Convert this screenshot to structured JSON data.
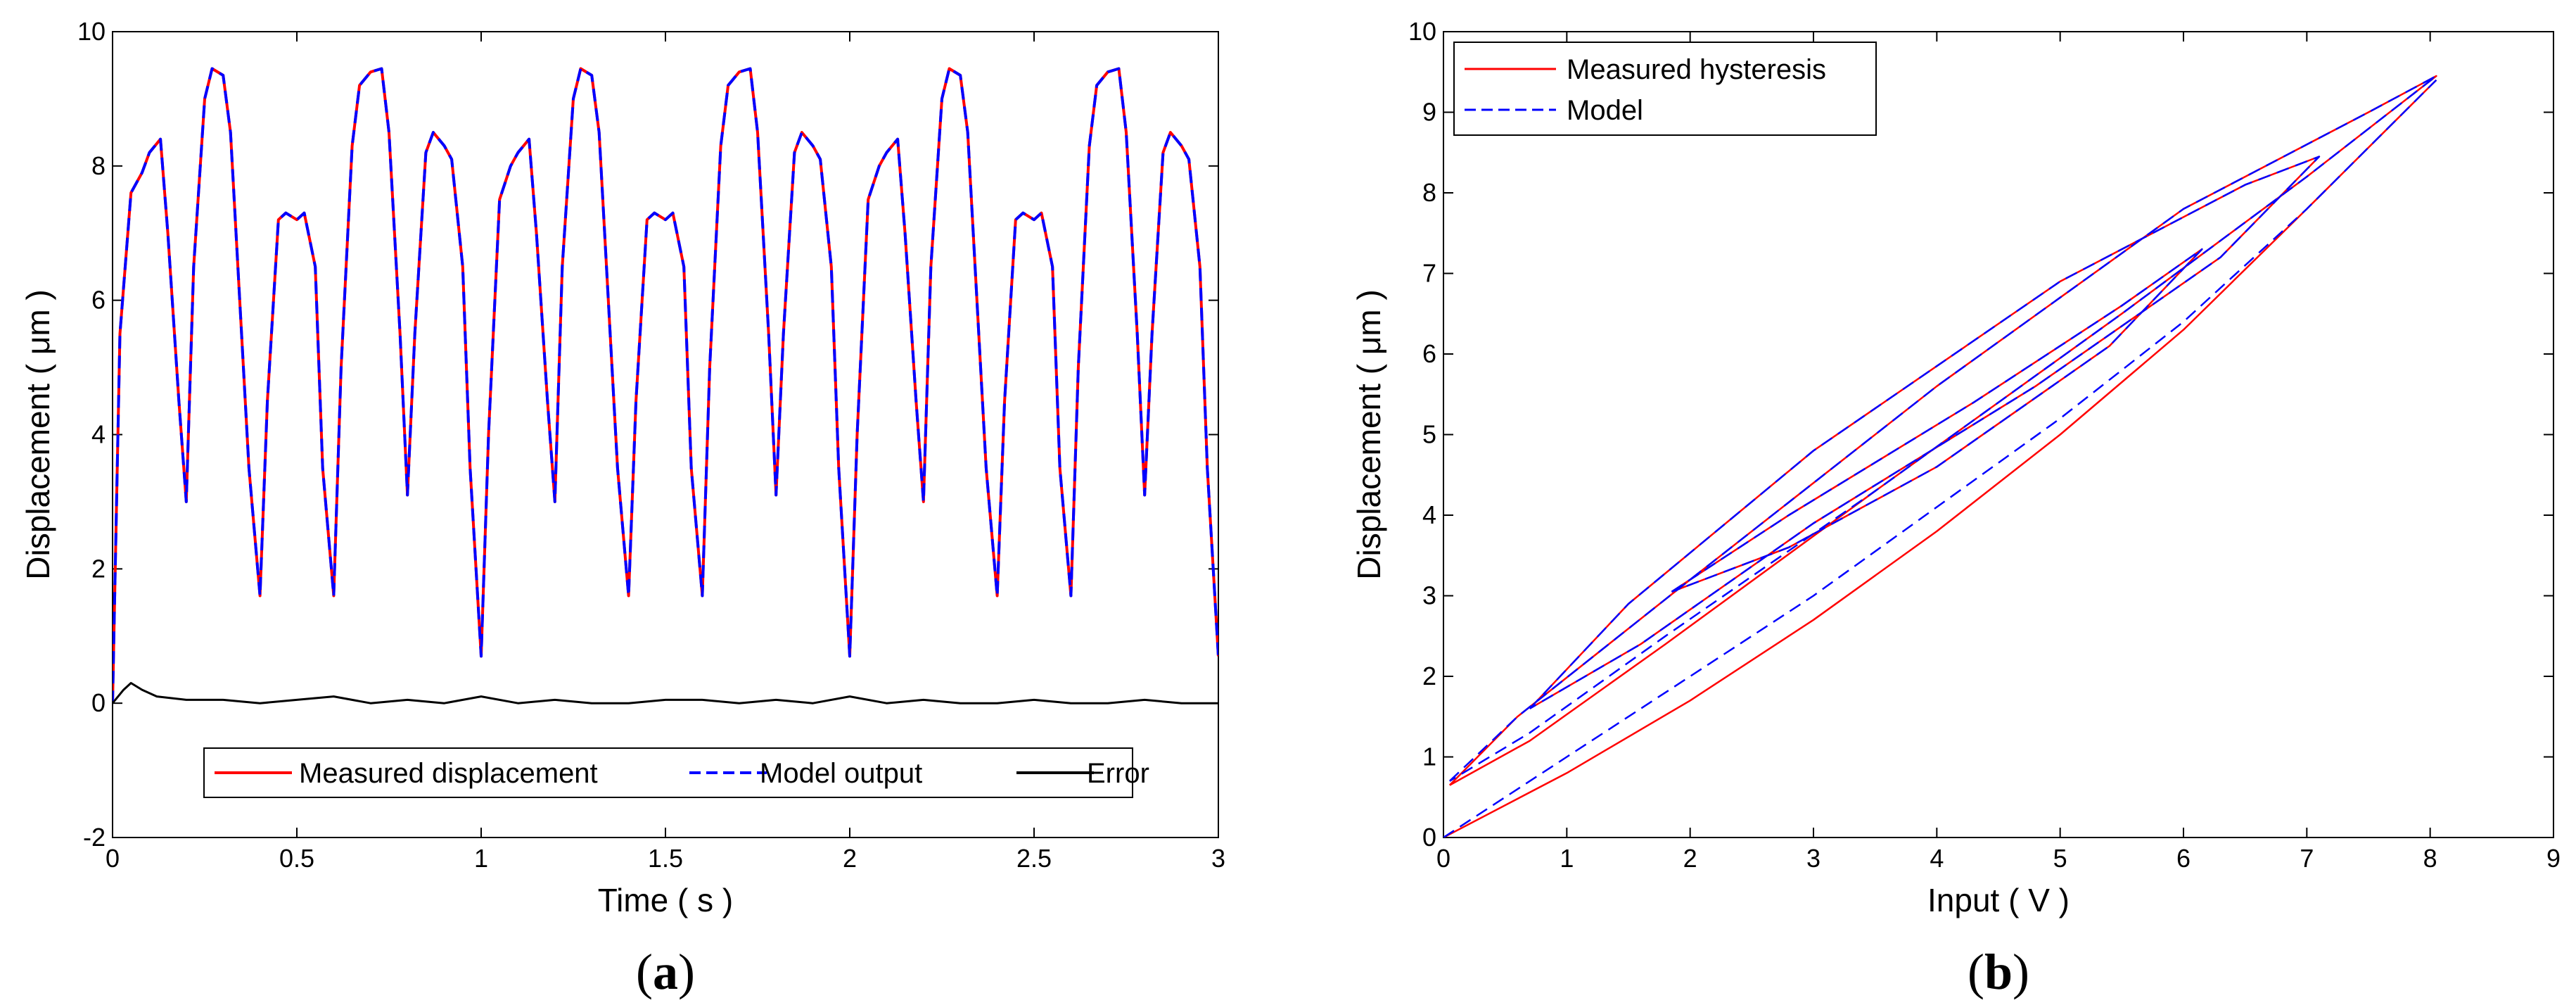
{
  "chart_data": [
    {
      "type": "line",
      "panel": "a",
      "caption_letter": "a",
      "title": "",
      "xlabel": "Time ( s )",
      "ylabel": "Displacement ( μm )",
      "xlim": [
        0,
        3
      ],
      "ylim": [
        -2,
        10
      ],
      "xticks": [
        0,
        0.5,
        1,
        1.5,
        2,
        2.5,
        3
      ],
      "xtick_labels": [
        "0",
        "0.5",
        "1",
        "1.5",
        "2",
        "2.5",
        "3"
      ],
      "yticks": [
        -2,
        0,
        2,
        4,
        6,
        8,
        10
      ],
      "ytick_labels": [
        "-2",
        "0",
        "2",
        "4",
        "6",
        "8",
        "10"
      ],
      "legend_position": "bottom",
      "series": [
        {
          "name": "Measured displacement",
          "color": "#ff0000",
          "style": "solid",
          "x": [
            0,
            0.02,
            0.05,
            0.08,
            0.1,
            0.13,
            0.15,
            0.18,
            0.2,
            0.22,
            0.25,
            0.27,
            0.3,
            0.32,
            0.35,
            0.37,
            0.4,
            0.42,
            0.45,
            0.47,
            0.5,
            0.52,
            0.55,
            0.57,
            0.6,
            0.62,
            0.65,
            0.67,
            0.7,
            0.73,
            0.75,
            0.78,
            0.8,
            0.82,
            0.85,
            0.87,
            0.9,
            0.92,
            0.95,
            0.97,
            1.0,
            1.02,
            1.05,
            1.08,
            1.1,
            1.13,
            1.15,
            1.18,
            1.2,
            1.22,
            1.25,
            1.27,
            1.3,
            1.32,
            1.35,
            1.37,
            1.4,
            1.42,
            1.45,
            1.47,
            1.5,
            1.52,
            1.55,
            1.57,
            1.6,
            1.62,
            1.65,
            1.67,
            1.7,
            1.73,
            1.75,
            1.78,
            1.8,
            1.82,
            1.85,
            1.87,
            1.9,
            1.92,
            1.95,
            1.97,
            2.0,
            2.02,
            2.05,
            2.08,
            2.1,
            2.13,
            2.15,
            2.18,
            2.2,
            2.22,
            2.25,
            2.27,
            2.3,
            2.32,
            2.35,
            2.37,
            2.4,
            2.42,
            2.45,
            2.47,
            2.5,
            2.52,
            2.55,
            2.57,
            2.6,
            2.62,
            2.65,
            2.67,
            2.7,
            2.73,
            2.75,
            2.78,
            2.8,
            2.82,
            2.85,
            2.87,
            2.9,
            2.92,
            2.95,
            2.97,
            3.0
          ],
          "y": [
            0,
            5.5,
            7.6,
            7.9,
            8.2,
            8.4,
            7.0,
            4.5,
            3.0,
            6.5,
            9.0,
            9.45,
            9.35,
            8.5,
            5.5,
            3.5,
            1.6,
            4.5,
            7.2,
            7.3,
            7.2,
            7.3,
            6.5,
            3.5,
            1.6,
            5.0,
            8.3,
            9.2,
            9.4,
            9.45,
            8.5,
            5.5,
            3.1,
            5.5,
            8.2,
            8.5,
            8.3,
            8.1,
            6.5,
            3.5,
            0.7,
            4.0,
            7.5,
            8.0,
            8.2,
            8.4,
            7.0,
            4.5,
            3.0,
            6.5,
            9.0,
            9.45,
            9.35,
            8.5,
            5.5,
            3.5,
            1.6,
            4.5,
            7.2,
            7.3,
            7.2,
            7.3,
            6.5,
            3.5,
            1.6,
            5.0,
            8.3,
            9.2,
            9.4,
            9.45,
            8.5,
            5.5,
            3.1,
            5.5,
            8.2,
            8.5,
            8.3,
            8.1,
            6.5,
            3.5,
            0.7,
            4.0,
            7.5,
            8.0,
            8.2,
            8.4,
            7.0,
            4.5,
            3.0,
            6.5,
            9.0,
            9.45,
            9.35,
            8.5,
            5.5,
            3.5,
            1.6,
            4.5,
            7.2,
            7.3,
            7.2,
            7.3,
            6.5,
            3.5,
            1.6,
            5.0,
            8.3,
            9.2,
            9.4,
            9.45,
            8.5,
            5.5,
            3.1,
            5.5,
            8.2,
            8.5,
            8.3,
            8.1,
            6.5,
            3.5,
            0.7
          ]
        },
        {
          "name": "Model output",
          "color": "#0000ff",
          "style": "dashed",
          "x": [
            0,
            0.02,
            0.05,
            0.08,
            0.1,
            0.13,
            0.15,
            0.18,
            0.2,
            0.22,
            0.25,
            0.27,
            0.3,
            0.32,
            0.35,
            0.37,
            0.4,
            0.42,
            0.45,
            0.47,
            0.5,
            0.52,
            0.55,
            0.57,
            0.6,
            0.62,
            0.65,
            0.67,
            0.7,
            0.73,
            0.75,
            0.78,
            0.8,
            0.82,
            0.85,
            0.87,
            0.9,
            0.92,
            0.95,
            0.97,
            1.0,
            1.02,
            1.05,
            1.08,
            1.1,
            1.13,
            1.15,
            1.18,
            1.2,
            1.22,
            1.25,
            1.27,
            1.3,
            1.32,
            1.35,
            1.37,
            1.4,
            1.42,
            1.45,
            1.47,
            1.5,
            1.52,
            1.55,
            1.57,
            1.6,
            1.62,
            1.65,
            1.67,
            1.7,
            1.73,
            1.75,
            1.78,
            1.8,
            1.82,
            1.85,
            1.87,
            1.9,
            1.92,
            1.95,
            1.97,
            2.0,
            2.02,
            2.05,
            2.08,
            2.1,
            2.13,
            2.15,
            2.18,
            2.2,
            2.22,
            2.25,
            2.27,
            2.3,
            2.32,
            2.35,
            2.37,
            2.4,
            2.42,
            2.45,
            2.47,
            2.5,
            2.52,
            2.55,
            2.57,
            2.6,
            2.62,
            2.65,
            2.67,
            2.7,
            2.73,
            2.75,
            2.78,
            2.8,
            2.82,
            2.85,
            2.87,
            2.9,
            2.92,
            2.95,
            2.97,
            3.0
          ],
          "y": [
            0,
            5.5,
            7.6,
            7.9,
            8.2,
            8.4,
            7.0,
            4.5,
            3.0,
            6.5,
            9.0,
            9.45,
            9.35,
            8.5,
            5.5,
            3.5,
            1.6,
            4.5,
            7.2,
            7.3,
            7.2,
            7.3,
            6.5,
            3.5,
            1.6,
            5.0,
            8.3,
            9.2,
            9.4,
            9.45,
            8.5,
            5.5,
            3.1,
            5.5,
            8.2,
            8.5,
            8.3,
            8.1,
            6.5,
            3.5,
            0.7,
            4.0,
            7.5,
            8.0,
            8.2,
            8.4,
            7.0,
            4.5,
            3.0,
            6.5,
            9.0,
            9.45,
            9.35,
            8.5,
            5.5,
            3.5,
            1.6,
            4.5,
            7.2,
            7.3,
            7.2,
            7.3,
            6.5,
            3.5,
            1.6,
            5.0,
            8.3,
            9.2,
            9.4,
            9.45,
            8.5,
            5.5,
            3.1,
            5.5,
            8.2,
            8.5,
            8.3,
            8.1,
            6.5,
            3.5,
            0.7,
            4.0,
            7.5,
            8.0,
            8.2,
            8.4,
            7.0,
            4.5,
            3.0,
            6.5,
            9.0,
            9.45,
            9.35,
            8.5,
            5.5,
            3.5,
            1.6,
            4.5,
            7.2,
            7.3,
            7.2,
            7.3,
            6.5,
            3.5,
            1.6,
            5.0,
            8.3,
            9.2,
            9.4,
            9.45,
            8.5,
            5.5,
            3.1,
            5.5,
            8.2,
            8.5,
            8.3,
            8.1,
            6.5,
            3.5,
            0.7
          ]
        },
        {
          "name": "Error",
          "color": "#000000",
          "style": "solid",
          "x": [
            0,
            0.03,
            0.05,
            0.08,
            0.12,
            0.2,
            0.3,
            0.4,
            0.5,
            0.6,
            0.7,
            0.8,
            0.9,
            1.0,
            1.1,
            1.2,
            1.3,
            1.4,
            1.5,
            1.6,
            1.7,
            1.8,
            1.9,
            2.0,
            2.1,
            2.2,
            2.3,
            2.4,
            2.5,
            2.6,
            2.7,
            2.8,
            2.9,
            3.0
          ],
          "y": [
            0,
            0.2,
            0.3,
            0.2,
            0.1,
            0.05,
            0.05,
            0.0,
            0.05,
            0.1,
            0.0,
            0.05,
            0.0,
            0.1,
            0.0,
            0.05,
            0.0,
            0.0,
            0.05,
            0.05,
            0.0,
            0.05,
            0.0,
            0.1,
            0.0,
            0.05,
            0.0,
            0.0,
            0.05,
            0.0,
            0.0,
            0.05,
            0.0,
            0.0
          ]
        }
      ]
    },
    {
      "type": "line",
      "panel": "b",
      "caption_letter": "b",
      "title": "",
      "xlabel": "Input ( V )",
      "ylabel": "Displacement ( μm )",
      "xlim": [
        0,
        9
      ],
      "ylim": [
        0,
        10
      ],
      "xticks": [
        0,
        1,
        2,
        3,
        4,
        5,
        6,
        7,
        8,
        9
      ],
      "xtick_labels": [
        "0",
        "1",
        "2",
        "3",
        "4",
        "5",
        "6",
        "7",
        "8",
        "9"
      ],
      "yticks": [
        0,
        1,
        2,
        3,
        4,
        5,
        6,
        7,
        8,
        9,
        10
      ],
      "ytick_labels": [
        "0",
        "1",
        "2",
        "3",
        "4",
        "5",
        "6",
        "7",
        "8",
        "9",
        "10"
      ],
      "legend_position": "top-left",
      "series": [
        {
          "name": "Measured hysteresis",
          "color": "#ff0000",
          "style": "solid",
          "loops": [
            {
              "x": [
                0.05,
                0.6,
                2.0,
                4.0,
                6.0,
                7.5,
                8.05,
                7.0,
                5.5,
                3.5,
                1.8,
                0.7,
                0.05
              ],
              "y": [
                0.65,
                1.5,
                3.2,
                5.6,
                7.8,
                9.0,
                9.45,
                8.2,
                6.5,
                4.3,
                2.4,
                1.2,
                0.65
              ]
            },
            {
              "x": [
                0.7,
                1.5,
                3.0,
                5.0,
                6.5,
                7.1,
                6.3,
                4.8,
                3.0,
                1.6,
                0.7
              ],
              "y": [
                1.6,
                2.9,
                4.8,
                6.9,
                8.1,
                8.45,
                7.2,
                5.6,
                3.9,
                2.4,
                1.6
              ]
            },
            {
              "x": [
                1.85,
                2.8,
                4.3,
                5.5,
                6.15,
                5.4,
                4.0,
                2.8,
                1.85
              ],
              "y": [
                3.05,
                4.0,
                5.4,
                6.6,
                7.3,
                6.1,
                4.6,
                3.6,
                3.05
              ]
            },
            {
              "x": [
                0.0,
                1.0,
                2.0,
                3.0,
                4.0,
                5.0,
                6.0,
                7.0,
                8.05
              ],
              "y": [
                0.0,
                0.8,
                1.7,
                2.7,
                3.8,
                5.0,
                6.3,
                7.8,
                9.4
              ]
            }
          ]
        },
        {
          "name": "Model",
          "color": "#0000ff",
          "style": "dashed",
          "loops": [
            {
              "x": [
                0.05,
                0.6,
                2.0,
                4.0,
                6.0,
                7.5,
                8.05,
                7.0,
                5.5,
                3.5,
                1.8,
                0.7,
                0.05
              ],
              "y": [
                0.7,
                1.5,
                3.2,
                5.6,
                7.8,
                9.0,
                9.45,
                8.2,
                6.5,
                4.3,
                2.5,
                1.3,
                0.7
              ]
            },
            {
              "x": [
                0.7,
                1.5,
                3.0,
                5.0,
                6.5,
                7.1,
                6.3,
                4.8,
                3.0,
                1.6,
                0.7
              ],
              "y": [
                1.6,
                2.9,
                4.8,
                6.9,
                8.1,
                8.45,
                7.2,
                5.6,
                3.9,
                2.4,
                1.6
              ]
            },
            {
              "x": [
                1.85,
                2.8,
                4.3,
                5.5,
                6.15,
                5.4,
                4.0,
                2.8,
                1.85
              ],
              "y": [
                3.05,
                4.0,
                5.4,
                6.6,
                7.3,
                6.1,
                4.6,
                3.6,
                3.05
              ]
            },
            {
              "x": [
                0.0,
                1.0,
                2.0,
                3.0,
                4.0,
                5.0,
                6.0,
                7.0,
                8.05
              ],
              "y": [
                0.0,
                1.0,
                2.0,
                3.0,
                4.1,
                5.2,
                6.4,
                7.8,
                9.4
              ]
            }
          ]
        }
      ]
    }
  ]
}
